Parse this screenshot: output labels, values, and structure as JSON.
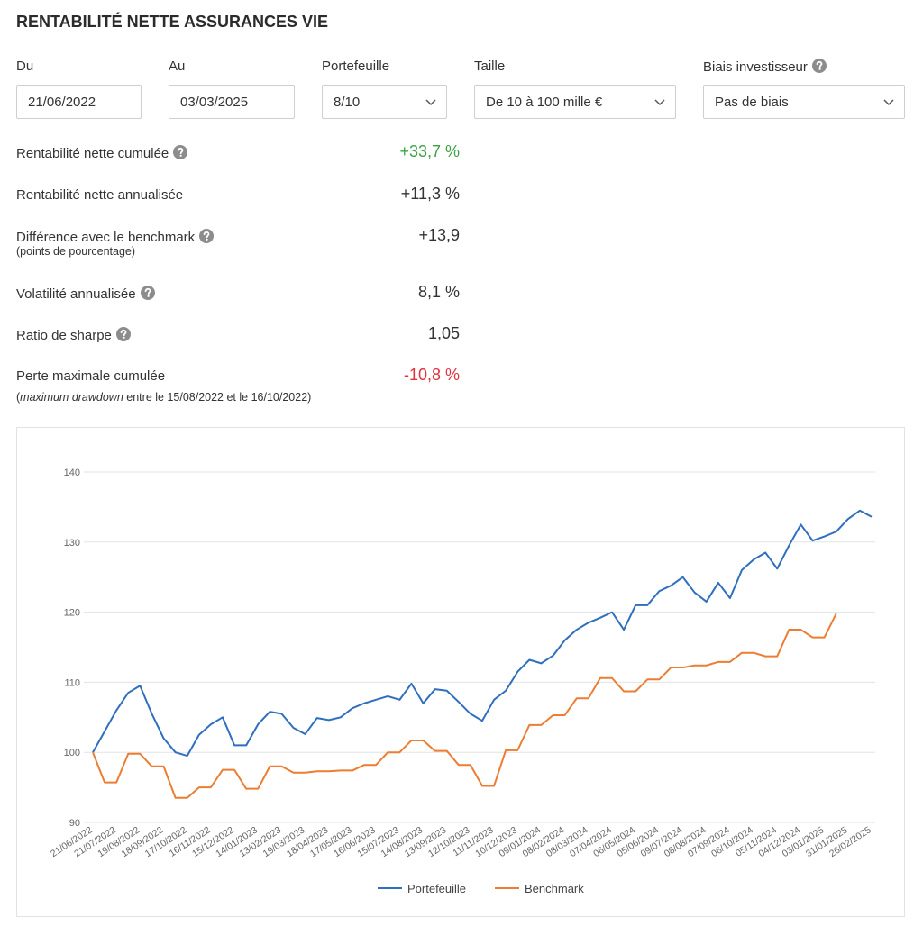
{
  "header": {
    "title": "RENTABILITÉ NETTE ASSURANCES VIE"
  },
  "filters": [
    {
      "label": "Du",
      "value": "21/06/2022"
    },
    {
      "label": "Au",
      "value": "03/03/2025"
    },
    {
      "label": "Portefeuille",
      "value": "8/10"
    },
    {
      "label": "Taille",
      "value": "De 10 à 100 mille €"
    },
    {
      "label": "Biais investisseur",
      "value": "Pas de biais"
    }
  ],
  "metrics": [
    {
      "label": "Rentabilité nette cumulée",
      "value": "+33,7 %",
      "color": "#3aa346"
    },
    {
      "label": "Rentabilité nette annualisée",
      "value": "+11,3 %"
    },
    {
      "label": "Différence avec le benchmark",
      "note": "(points de pourcentage)",
      "value": "+13,9"
    },
    {
      "label": "Volatilité annualisée",
      "value": "8,1 %"
    },
    {
      "label": "Ratio de sharpe",
      "value": "1,05"
    },
    {
      "label": "Perte maximale cumulée",
      "note_prefix": "(",
      "note_em": "maximum drawdown",
      "note_rest": "entre le 15/08/2022 et le 16/10/2022)",
      "value": "-10,8 %",
      "color": "#e0313f"
    }
  ],
  "chart_data": {
    "type": "line",
    "categories": [
      "21/06/2022",
      null,
      "21/07/2022",
      null,
      "19/08/2022",
      null,
      "18/09/2022",
      null,
      "17/10/2022",
      null,
      "16/11/2022",
      null,
      "15/12/2022",
      null,
      "14/01/2023",
      null,
      "13/02/2023",
      null,
      "19/03/2023",
      null,
      "18/04/2023",
      null,
      "17/05/2023",
      null,
      "16/06/2023",
      null,
      "15/07/2023",
      null,
      "14/08/2023",
      null,
      "13/09/2023",
      null,
      "12/10/2023",
      null,
      "11/11/2023",
      null,
      "10/12/2023",
      null,
      "09/01/2024",
      null,
      "08/02/2024",
      null,
      "08/03/2024",
      null,
      "07/04/2024",
      null,
      "06/05/2024",
      null,
      "05/06/2024",
      null,
      "09/07/2024",
      null,
      "08/08/2024",
      null,
      "07/09/2024",
      null,
      "06/10/2024",
      null,
      "05/11/2024",
      null,
      "04/12/2024",
      null,
      "03/01/2025",
      null,
      "31/01/2025",
      null,
      "26/02/2025"
    ],
    "series": [
      {
        "name": "Portefeuille",
        "color": "#2f6fbd",
        "values": [
          100,
          103,
          106,
          108.5,
          109.5,
          105.5,
          102,
          100,
          99.5,
          102.5,
          104,
          105,
          101,
          101,
          104,
          105.8,
          105.5,
          103.5,
          102.6,
          104.9,
          104.6,
          105,
          106.3,
          107,
          107.5,
          108,
          107.5,
          109.8,
          107,
          109,
          108.8,
          107.2,
          105.5,
          104.5,
          107.5,
          108.8,
          111.5,
          113.2,
          112.7,
          113.8,
          116,
          117.5,
          118.5,
          119.2,
          120,
          117.5,
          121,
          121,
          123,
          123.8,
          125,
          122.8,
          121.5,
          124.2,
          122,
          126,
          127.5,
          128.5,
          126.2,
          129.5,
          132.5,
          130.2,
          130.8,
          131.5,
          133.3,
          134.5,
          133.6
        ]
      },
      {
        "name": "Benchmark",
        "color": "#ec7d32",
        "values": [
          100,
          95.7,
          95.7,
          99.8,
          99.8,
          98,
          98,
          93.5,
          93.5,
          95,
          95,
          97.5,
          97.5,
          94.8,
          94.8,
          98,
          98,
          97.1,
          97.1,
          97.3,
          97.3,
          97.4,
          97.4,
          98.2,
          98.2,
          100,
          100,
          101.7,
          101.7,
          100.2,
          100.2,
          98.2,
          98.2,
          95.2,
          95.2,
          100.3,
          100.3,
          103.9,
          103.9,
          105.3,
          105.3,
          107.7,
          107.7,
          110.6,
          110.6,
          108.7,
          108.7,
          110.4,
          110.4,
          112.1,
          112.1,
          112.4,
          112.4,
          112.9,
          112.9,
          114.2,
          114.2,
          113.7,
          113.7,
          117.5,
          117.5,
          116.4,
          116.4,
          119.8,
          null,
          null,
          null
        ]
      }
    ],
    "ylim": [
      90,
      140
    ],
    "yticks": [
      90,
      100,
      110,
      120,
      130,
      140
    ],
    "grid": true,
    "legend": "bottom"
  }
}
